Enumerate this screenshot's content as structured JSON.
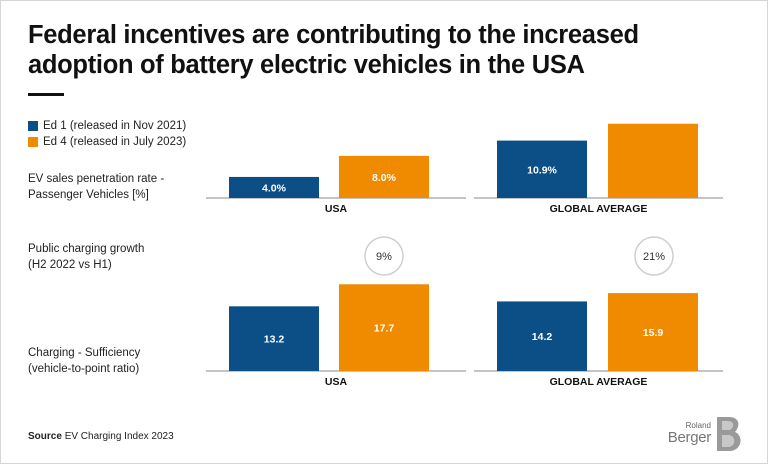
{
  "title": {
    "line1": "Federal incentives are contributing to the increased",
    "line2": "adoption of battery electric vehicles in the USA"
  },
  "colors": {
    "series1": "#0b4f86",
    "series2": "#f08b00",
    "axis": "#888888",
    "circle": "#cfcfcf"
  },
  "legend": [
    {
      "label": "Ed 1 (released in Nov 2021)",
      "color": "#0b4f86"
    },
    {
      "label": "Ed 4 (released in July 2023)",
      "color": "#f08b00"
    }
  ],
  "row_labels": {
    "ev_sales": [
      "EV sales penetration rate -",
      "Passenger Vehicles [%]"
    ],
    "charging_growth": [
      "Public charging growth",
      "(H2 2022 vs H1)"
    ],
    "sufficiency": [
      "Charging - Sufficiency",
      "(vehicle-to-point ratio)"
    ]
  },
  "chart_data": [
    {
      "type": "bar",
      "title": "EV sales penetration rate - Passenger Vehicles [%]",
      "categories": [
        "USA",
        "GLOBAL AVERAGE"
      ],
      "series": [
        {
          "name": "Ed 1 (released in Nov 2021)",
          "values": [
            4.0,
            10.9
          ],
          "labels": [
            "4.0%",
            "10.9%"
          ]
        },
        {
          "name": "Ed 4 (released in July 2023)",
          "values": [
            8.0,
            14.1
          ],
          "labels": [
            "8.0%",
            ""
          ]
        }
      ],
      "ylim": [
        0,
        15
      ]
    },
    {
      "type": "table",
      "title": "Public charging growth (H2 2022 vs H1)",
      "categories": [
        "USA",
        "GLOBAL AVERAGE"
      ],
      "values": [
        "9%",
        "21%"
      ]
    },
    {
      "type": "bar",
      "title": "Charging - Sufficiency (vehicle-to-point ratio)",
      "categories": [
        "USA",
        "GLOBAL AVERAGE"
      ],
      "series": [
        {
          "name": "Ed 1 (released in Nov 2021)",
          "values": [
            13.2,
            14.2
          ],
          "labels": [
            "13.2",
            "14.2"
          ]
        },
        {
          "name": "Ed 4 (released in July 2023)",
          "values": [
            17.7,
            15.9
          ],
          "labels": [
            "17.7",
            "15.9"
          ]
        }
      ],
      "ylim": [
        0,
        20
      ]
    }
  ],
  "source": {
    "label": "Source",
    "text": "EV Charging Index 2023"
  },
  "logo": {
    "line1": "Roland",
    "line2": "Berger"
  }
}
